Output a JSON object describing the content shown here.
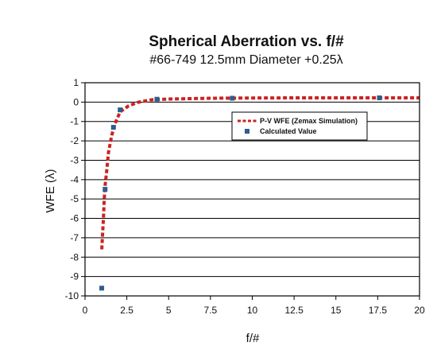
{
  "chart_data": {
    "type": "line",
    "title": "Spherical Aberration vs. f/#",
    "subtitle": "#66-749 12.5mm Diameter +0.25λ",
    "xlabel": "f/#",
    "ylabel": "WFE (λ)",
    "xlim": [
      0,
      20
    ],
    "ylim": [
      -10,
      1
    ],
    "x_ticks": [
      "0",
      "2.5",
      "5",
      "7.5",
      "10",
      "12.5",
      "15",
      "17.5",
      "20"
    ],
    "y_ticks": [
      "1",
      "0",
      "-1",
      "-2",
      "-3",
      "-4",
      "-5",
      "-6",
      "-7",
      "-8",
      "-9",
      "-10"
    ],
    "grid": "horizontal",
    "legend_position": "upper-right-inside",
    "series": [
      {
        "name": "P-V WFE (Zemax Simulation)",
        "style": "dashed-line",
        "color": "#cc2222",
        "points": [
          [
            1.0,
            -7.6
          ],
          [
            1.05,
            -6.8
          ],
          [
            1.1,
            -6.0
          ],
          [
            1.15,
            -5.0
          ],
          [
            1.2,
            -4.3
          ],
          [
            1.3,
            -3.5
          ],
          [
            1.4,
            -2.6
          ],
          [
            1.6,
            -1.7
          ],
          [
            1.8,
            -1.1
          ],
          [
            2.1,
            -0.5
          ],
          [
            2.6,
            -0.2
          ],
          [
            3.2,
            0.0
          ],
          [
            4.0,
            0.12
          ],
          [
            5.0,
            0.16
          ],
          [
            7.5,
            0.2
          ],
          [
            10.0,
            0.21
          ],
          [
            12.5,
            0.22
          ],
          [
            15.0,
            0.22
          ],
          [
            17.5,
            0.22
          ],
          [
            20.0,
            0.22
          ]
        ]
      },
      {
        "name": "Calculated Value",
        "style": "square-marker",
        "color": "#2e5e8e",
        "points": [
          [
            1.0,
            -9.6
          ],
          [
            1.2,
            -4.5
          ],
          [
            1.7,
            -1.3
          ],
          [
            2.1,
            -0.4
          ],
          [
            4.3,
            0.15
          ],
          [
            8.8,
            0.2
          ],
          [
            17.6,
            0.22
          ]
        ]
      }
    ]
  }
}
